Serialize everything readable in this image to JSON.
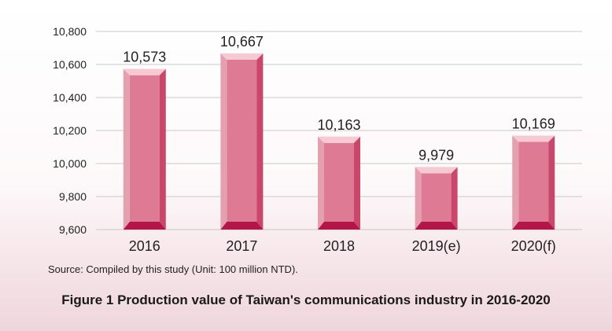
{
  "chart_data": {
    "type": "bar",
    "categories": [
      "2016",
      "2017",
      "2018",
      "2019(e)",
      "2020(f)"
    ],
    "values": [
      10573,
      10667,
      10163,
      9979,
      10169
    ],
    "value_labels": [
      "10,573",
      "10,667",
      "10,163",
      "9,979",
      "10,169"
    ],
    "ylim": [
      9600,
      10800
    ],
    "yticks": [
      9600,
      9800,
      10000,
      10200,
      10400,
      10600,
      10800
    ],
    "ytick_labels": [
      "9,600",
      "9,800",
      "10,000",
      "10,200",
      "10,400",
      "10,600",
      "10,800"
    ],
    "grid": true,
    "bar_color": "#de7a93"
  },
  "source_note": "Source: Compiled by this study (Unit: 100 million NTD).",
  "figure_caption": "Figure 1 Production value of Taiwan's communications industry in 2016-2020"
}
